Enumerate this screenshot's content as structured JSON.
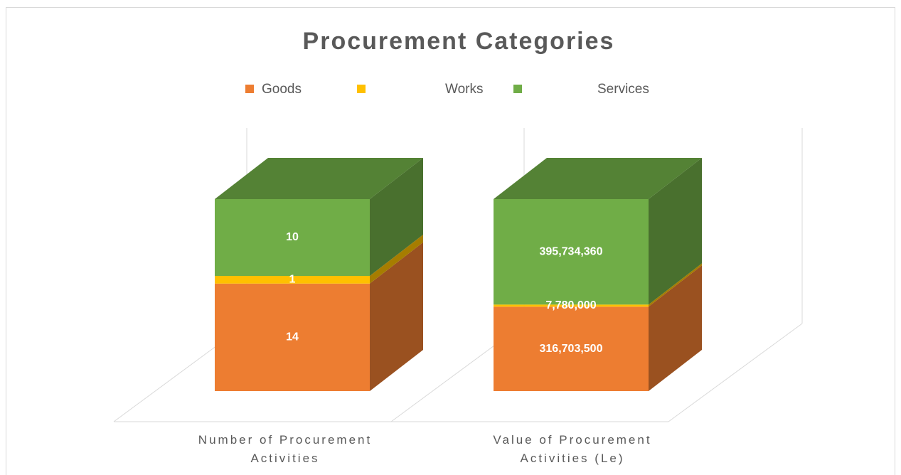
{
  "chart_data": {
    "type": "bar3d",
    "stacking": "percent",
    "title": "Procurement Categories",
    "categories": [
      "Number of Procurement Activities",
      "Value of Procurement Activities (Le)"
    ],
    "series": [
      {
        "name": "Goods",
        "color": "#ED7D31",
        "values": [
          14,
          316703500
        ],
        "value_labels": [
          "14",
          "316,703,500"
        ]
      },
      {
        "name": "Works",
        "color": "#FFC000",
        "values": [
          1,
          7780000
        ],
        "value_labels": [
          "1",
          "7,780,000"
        ]
      },
      {
        "name": "Services",
        "color": "#70AD47",
        "values": [
          10,
          395734360
        ],
        "value_labels": [
          "10",
          "395,734,360"
        ]
      }
    ],
    "legend": "top"
  }
}
